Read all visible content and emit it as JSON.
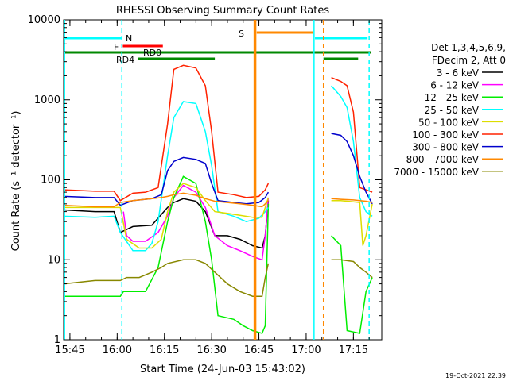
{
  "chart_data": {
    "type": "line",
    "title": "RHESSI Observing Summary Count Rates",
    "xlabel": "Start Time (24-Jun-03 15:43:02)",
    "ylabel": "Count Rate (s⁻¹ detector⁻¹)",
    "y_scale": "log",
    "ylim": [
      1,
      10000
    ],
    "xlim_minutes_after_1543": [
      0,
      101
    ],
    "x_ticks": [
      "15:45",
      "16:00",
      "16:15",
      "16:30",
      "16:45",
      "17:00",
      "17:15"
    ],
    "y_ticks": [
      "1",
      "10",
      "100",
      "1000",
      "10000"
    ],
    "timestamp": "19-Oct-2021 22:39",
    "legend_header": [
      "Det 1,3,4,5,6,9,",
      "FDecim 2, Att 0"
    ],
    "series": [
      {
        "name": "3 - 6 keV",
        "color": "#000000",
        "points": [
          [
            0,
            42
          ],
          [
            10,
            40
          ],
          [
            16,
            40
          ],
          [
            18,
            22
          ],
          [
            22,
            26
          ],
          [
            28,
            27
          ],
          [
            33,
            45
          ],
          [
            35,
            52
          ],
          [
            38,
            58
          ],
          [
            42,
            54
          ],
          [
            45,
            40
          ],
          [
            48,
            20
          ],
          [
            52,
            20
          ],
          [
            56,
            18
          ],
          [
            60,
            15
          ],
          [
            63,
            14
          ],
          [
            64,
            20
          ],
          [
            65,
            55
          ],
          [
            68,
            null
          ],
          [
            82,
            null
          ],
          [
            88,
            null
          ],
          [
            96,
            null
          ]
        ]
      },
      {
        "name": "6 - 12 keV",
        "color": "#ff00ff",
        "points": [
          [
            0,
            null
          ],
          [
            18,
            null
          ],
          [
            19,
            40
          ],
          [
            20,
            20
          ],
          [
            22,
            17
          ],
          [
            26,
            17
          ],
          [
            30,
            22
          ],
          [
            33,
            35
          ],
          [
            35,
            60
          ],
          [
            38,
            85
          ],
          [
            42,
            70
          ],
          [
            45,
            45
          ],
          [
            48,
            20
          ],
          [
            52,
            15
          ],
          [
            56,
            13
          ],
          [
            60,
            11
          ],
          [
            63,
            10
          ],
          [
            64,
            20
          ],
          [
            65,
            60
          ]
        ]
      },
      {
        "name": "12 - 25 keV",
        "color": "#00ee00",
        "points": [
          [
            0,
            3.5
          ],
          [
            18,
            3.5
          ],
          [
            19,
            4
          ],
          [
            26,
            4
          ],
          [
            30,
            8
          ],
          [
            33,
            30
          ],
          [
            35,
            60
          ],
          [
            38,
            110
          ],
          [
            42,
            90
          ],
          [
            45,
            30
          ],
          [
            47,
            10
          ],
          [
            49,
            2
          ],
          [
            54,
            1.8
          ],
          [
            57,
            1.5
          ],
          [
            60,
            1.3
          ],
          [
            63,
            1.2
          ],
          [
            64,
            1.5
          ],
          [
            65,
            50
          ],
          [
            82,
            null
          ],
          [
            85,
            20
          ],
          [
            88,
            15
          ],
          [
            90,
            1.3
          ],
          [
            94,
            1.2
          ],
          [
            96,
            4
          ],
          [
            98,
            6
          ]
        ]
      },
      {
        "name": "25 - 50 keV",
        "color": "#00ffff",
        "points": [
          [
            0,
            35
          ],
          [
            10,
            34
          ],
          [
            16,
            35
          ],
          [
            18,
            22
          ],
          [
            22,
            13
          ],
          [
            26,
            13
          ],
          [
            28,
            16
          ],
          [
            30,
            30
          ],
          [
            33,
            200
          ],
          [
            35,
            600
          ],
          [
            38,
            950
          ],
          [
            42,
            900
          ],
          [
            45,
            400
          ],
          [
            47,
            150
          ],
          [
            49,
            40
          ],
          [
            54,
            35
          ],
          [
            58,
            30
          ],
          [
            62,
            33
          ],
          [
            64,
            40
          ],
          [
            65,
            45
          ],
          [
            82,
            null
          ],
          [
            85,
            1500
          ],
          [
            88,
            1100
          ],
          [
            90,
            800
          ],
          [
            92,
            300
          ],
          [
            94,
            60
          ],
          [
            96,
            40
          ],
          [
            98,
            35
          ]
        ]
      },
      {
        "name": "50 - 100 keV",
        "color": "#dddd00",
        "points": [
          [
            0,
            45
          ],
          [
            18,
            45
          ],
          [
            20,
            18
          ],
          [
            24,
            14
          ],
          [
            28,
            14
          ],
          [
            31,
            18
          ],
          [
            33,
            40
          ],
          [
            35,
            70
          ],
          [
            38,
            90
          ],
          [
            42,
            80
          ],
          [
            45,
            55
          ],
          [
            48,
            40
          ],
          [
            52,
            38
          ],
          [
            56,
            36
          ],
          [
            60,
            34
          ],
          [
            63,
            34
          ],
          [
            64,
            45
          ],
          [
            65,
            60
          ],
          [
            82,
            null
          ],
          [
            85,
            55
          ],
          [
            88,
            55
          ],
          [
            92,
            53
          ],
          [
            94,
            52
          ],
          [
            95,
            15
          ],
          [
            96,
            20
          ],
          [
            98,
            50
          ]
        ]
      },
      {
        "name": "100 - 300 keV",
        "color": "#ff2200",
        "points": [
          [
            0,
            75
          ],
          [
            10,
            72
          ],
          [
            16,
            72
          ],
          [
            18,
            55
          ],
          [
            22,
            68
          ],
          [
            26,
            70
          ],
          [
            30,
            80
          ],
          [
            33,
            500
          ],
          [
            35,
            2400
          ],
          [
            38,
            2700
          ],
          [
            42,
            2500
          ],
          [
            45,
            1500
          ],
          [
            47,
            400
          ],
          [
            49,
            70
          ],
          [
            54,
            65
          ],
          [
            58,
            60
          ],
          [
            62,
            62
          ],
          [
            64,
            75
          ],
          [
            65,
            90
          ],
          [
            82,
            null
          ],
          [
            85,
            1900
          ],
          [
            88,
            1700
          ],
          [
            90,
            1500
          ],
          [
            92,
            700
          ],
          [
            94,
            80
          ],
          [
            96,
            75
          ],
          [
            98,
            70
          ]
        ]
      },
      {
        "name": "300 - 800 keV",
        "color": "#0000cc",
        "points": [
          [
            0,
            62
          ],
          [
            10,
            60
          ],
          [
            16,
            60
          ],
          [
            18,
            48
          ],
          [
            22,
            55
          ],
          [
            28,
            58
          ],
          [
            31,
            65
          ],
          [
            33,
            130
          ],
          [
            35,
            170
          ],
          [
            38,
            190
          ],
          [
            42,
            180
          ],
          [
            45,
            160
          ],
          [
            47,
            90
          ],
          [
            49,
            55
          ],
          [
            54,
            52
          ],
          [
            58,
            50
          ],
          [
            62,
            52
          ],
          [
            64,
            60
          ],
          [
            65,
            70
          ],
          [
            82,
            null
          ],
          [
            85,
            380
          ],
          [
            88,
            360
          ],
          [
            90,
            300
          ],
          [
            92,
            200
          ],
          [
            94,
            110
          ],
          [
            96,
            70
          ],
          [
            98,
            50
          ]
        ]
      },
      {
        "name": "800 - 7000 keV",
        "color": "#ff8800",
        "points": [
          [
            0,
            48
          ],
          [
            10,
            46
          ],
          [
            16,
            46
          ],
          [
            18,
            52
          ],
          [
            22,
            55
          ],
          [
            28,
            58
          ],
          [
            31,
            60
          ],
          [
            33,
            62
          ],
          [
            35,
            65
          ],
          [
            38,
            68
          ],
          [
            42,
            64
          ],
          [
            45,
            58
          ],
          [
            48,
            54
          ],
          [
            52,
            52
          ],
          [
            56,
            50
          ],
          [
            60,
            48
          ],
          [
            63,
            46
          ],
          [
            64,
            50
          ],
          [
            65,
            55
          ],
          [
            82,
            null
          ],
          [
            85,
            58
          ],
          [
            88,
            57
          ],
          [
            92,
            56
          ],
          [
            94,
            55
          ],
          [
            96,
            54
          ],
          [
            98,
            52
          ]
        ]
      },
      {
        "name": "7000 - 15000 keV",
        "color": "#888800",
        "points": [
          [
            0,
            5
          ],
          [
            10,
            5.5
          ],
          [
            16,
            5.5
          ],
          [
            18,
            5.5
          ],
          [
            20,
            6
          ],
          [
            24,
            6
          ],
          [
            28,
            7
          ],
          [
            31,
            8
          ],
          [
            33,
            9
          ],
          [
            38,
            10
          ],
          [
            42,
            10
          ],
          [
            45,
            9
          ],
          [
            48,
            7
          ],
          [
            52,
            5
          ],
          [
            56,
            4
          ],
          [
            60,
            3.5
          ],
          [
            63,
            3.5
          ],
          [
            64,
            6
          ],
          [
            65,
            9
          ],
          [
            82,
            null
          ],
          [
            85,
            10
          ],
          [
            88,
            10
          ],
          [
            92,
            9.5
          ],
          [
            94,
            8
          ],
          [
            96,
            7
          ],
          [
            98,
            6
          ]
        ]
      }
    ],
    "flags": [
      {
        "label": "N",
        "color": "#00ffff"
      },
      {
        "label": "F",
        "color": "#ff0000"
      },
      {
        "label": "RD0",
        "color": "#ff0000"
      },
      {
        "label": "RD4",
        "color": "#008800"
      },
      {
        "label": "S",
        "color": "#ff8800"
      }
    ],
    "vlines": [
      {
        "t": 0.3,
        "color": "#00ffff",
        "style": "solid"
      },
      {
        "t": 18.5,
        "color": "#00ffff",
        "style": "dash"
      },
      {
        "t": 60.5,
        "color": "#ff8800",
        "style": "solid"
      },
      {
        "t": 61,
        "color": "#ff8800",
        "style": "solid"
      },
      {
        "t": 79.5,
        "color": "#00ffff",
        "style": "solid"
      },
      {
        "t": 82.5,
        "color": "#ff8800",
        "style": "dash"
      },
      {
        "t": 97,
        "color": "#00ffff",
        "style": "dash"
      }
    ]
  }
}
